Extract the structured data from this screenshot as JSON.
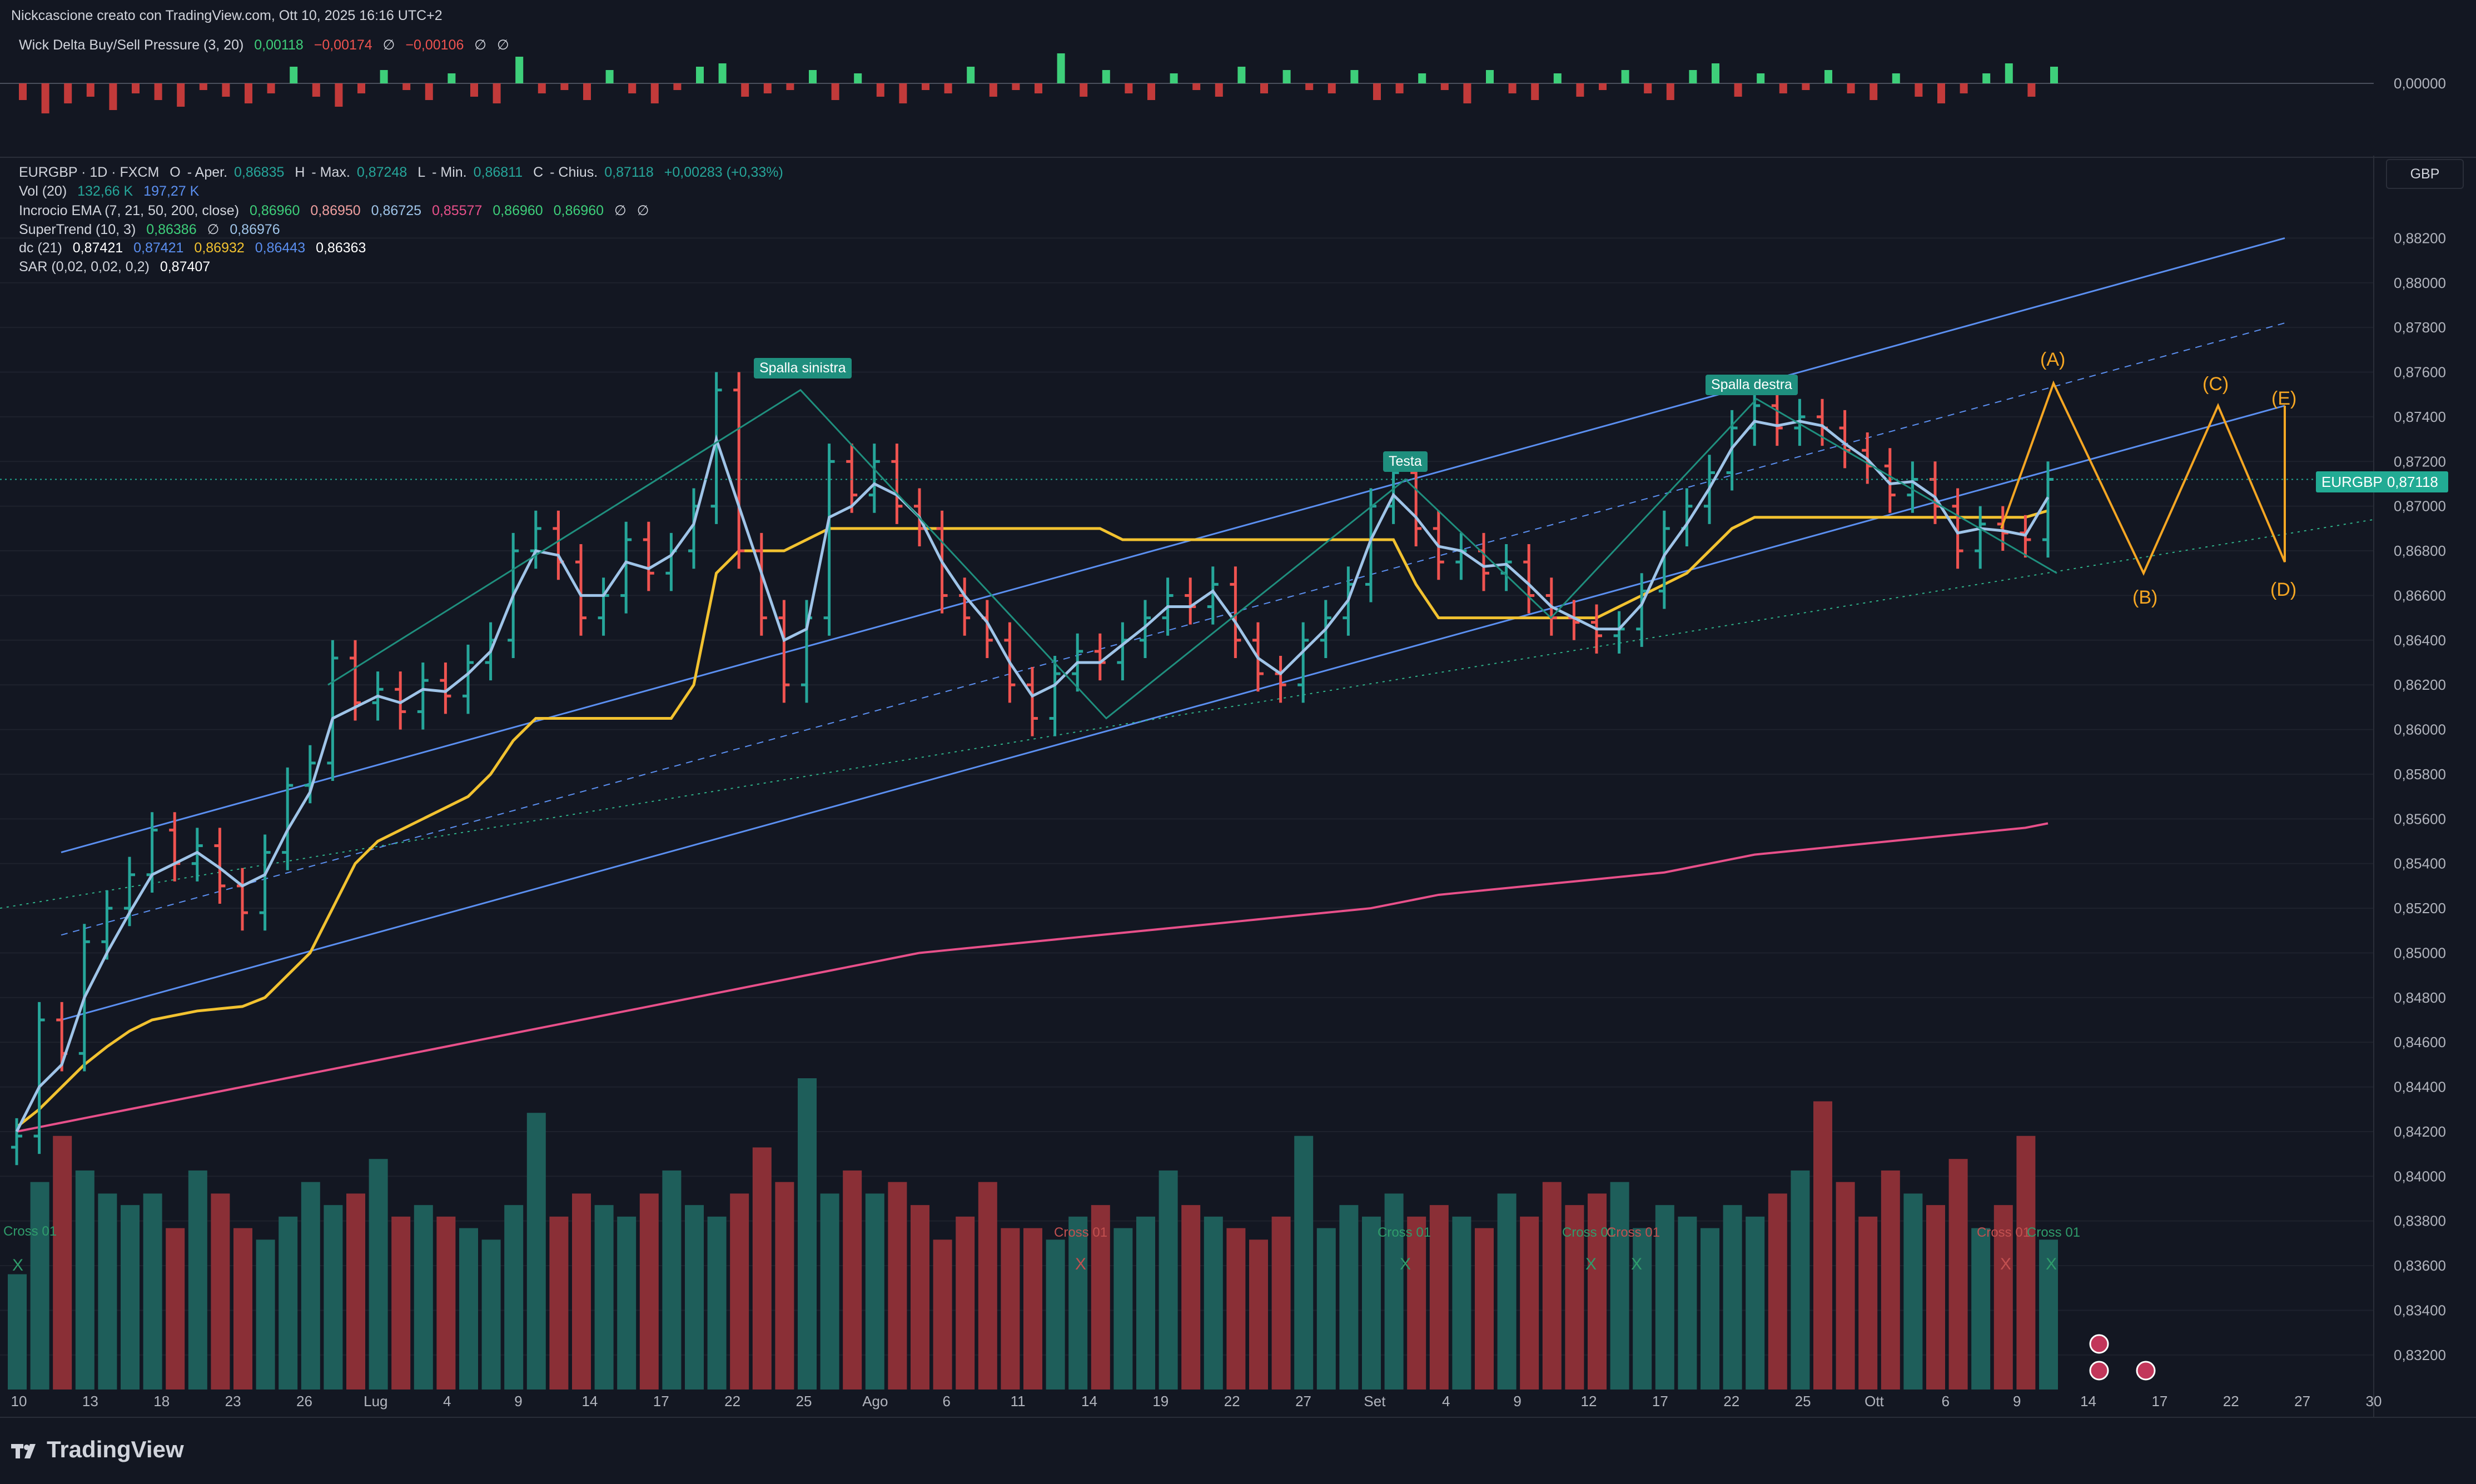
{
  "header": {
    "title": "Nickcascione creato con TradingView.com, Ott 10, 2025 16:16 UTC+2"
  },
  "wick_delta": {
    "name": "Wick Delta Buy/Sell Pressure (3, 20)",
    "values": [
      "0,00118",
      "−0,00174",
      "∅",
      "−0,00106",
      "∅",
      "∅"
    ],
    "zero_label": "0,00000"
  },
  "legend": {
    "symbol": "EURGBP · 1D · FXCM",
    "ohlc": [
      "O",
      "- Aper.",
      "0,86835",
      "H",
      "- Max.",
      "0,87248",
      "L",
      "- Min.",
      "0,86811",
      "C",
      "- Chius.",
      "0,87118",
      "+0,00283 (+0,33%)"
    ],
    "vol": {
      "name": "Vol (20)",
      "values": [
        "132,66 K",
        "197,27 K"
      ]
    },
    "ema": {
      "name": "Incrocio EMA (7, 21, 50, 200, close)",
      "values": [
        "0,86960",
        "0,86950",
        "0,86725",
        "0,85577",
        "0,86960",
        "0,86960",
        "∅",
        "∅"
      ]
    },
    "supertrend": {
      "name": "SuperTrend (10, 3)",
      "values": [
        "0,86386",
        "∅",
        "0,86976"
      ]
    },
    "dc": {
      "name": "dc (21)",
      "values": [
        "0,87421",
        "0,87421",
        "0,86932",
        "0,86443",
        "0,86363"
      ]
    },
    "sar": {
      "name": "SAR (0,02, 0,02, 0,2)",
      "values": [
        "0,87407"
      ]
    }
  },
  "currency": "GBP",
  "price_tag": {
    "symbol": "EURGBP",
    "value": "0,87118"
  },
  "brand": "TradingView",
  "colors": {
    "up": "#26a69a",
    "down": "#ef5350",
    "background": "#131722",
    "ema_fast": "#9fc4e8",
    "ema_mid": "#3ecf7a",
    "ema_200": "#e8508a",
    "supertrend": "#f2c230",
    "channel": "#5b8ff0",
    "wave": "#f5a623"
  },
  "annotations": {
    "left_shoulder": "Spalla sinistra",
    "head": "Testa",
    "right_shoulder": "Spalla destra",
    "waves": [
      "(A)",
      "(B)",
      "(C)",
      "(D)",
      "(E)"
    ],
    "cross_labels": [
      "Cross 01",
      "Cross 01",
      "Cross 01",
      "Cross 01",
      "Cross 01",
      "Cross 01",
      "Cross 01",
      "Cross 01"
    ],
    "cross_marks": [
      "X",
      "X",
      "X",
      "X",
      "X",
      "X",
      "X"
    ]
  },
  "chart_data": {
    "type": "candlestick",
    "symbol": "EURGBP",
    "timeframe": "1D",
    "ylim": [
      0.8312,
      0.8842
    ],
    "y_ticks": [
      "0,88200",
      "0,88000",
      "0,87800",
      "0,87600",
      "0,87400",
      "0,87200",
      "0,87000",
      "0,86800",
      "0,86600",
      "0,86400",
      "0,86200",
      "0,86000",
      "0,85800",
      "0,85600",
      "0,85400",
      "0,85200",
      "0,85000",
      "0,84800",
      "0,84600",
      "0,84400",
      "0,84200",
      "0,84000",
      "0,83800",
      "0,83600",
      "0,83400",
      "0,83200"
    ],
    "x_ticks": [
      "10",
      "13",
      "18",
      "23",
      "26",
      "Lug",
      "4",
      "9",
      "14",
      "17",
      "22",
      "25",
      "Ago",
      "6",
      "11",
      "14",
      "19",
      "22",
      "27",
      "Set",
      "4",
      "9",
      "12",
      "17",
      "22",
      "25",
      "Ott",
      "6",
      "9",
      "14",
      "17",
      "22",
      "27",
      "30"
    ],
    "closes": [
      0.8418,
      0.847,
      0.8455,
      0.8505,
      0.852,
      0.8535,
      0.8555,
      0.854,
      0.8548,
      0.853,
      0.8518,
      0.8545,
      0.8575,
      0.8585,
      0.8632,
      0.8612,
      0.8618,
      0.8608,
      0.8622,
      0.8615,
      0.863,
      0.864,
      0.868,
      0.869,
      0.8675,
      0.865,
      0.866,
      0.8685,
      0.867,
      0.868,
      0.87,
      0.8752,
      0.868,
      0.865,
      0.862,
      0.865,
      0.872,
      0.8705,
      0.872,
      0.87,
      0.869,
      0.866,
      0.865,
      0.864,
      0.862,
      0.8605,
      0.8625,
      0.8635,
      0.863,
      0.864,
      0.865,
      0.866,
      0.8655,
      0.8665,
      0.864,
      0.8625,
      0.862,
      0.864,
      0.865,
      0.8665,
      0.87,
      0.8715,
      0.869,
      0.8675,
      0.868,
      0.867,
      0.8675,
      0.866,
      0.865,
      0.8648,
      0.8642,
      0.8645,
      0.8662,
      0.869,
      0.87,
      0.8715,
      0.8735,
      0.8745,
      0.8735,
      0.874,
      0.8735,
      0.8725,
      0.8718,
      0.8705,
      0.8712,
      0.87,
      0.868,
      0.8692,
      0.8688,
      0.8685,
      0.8712
    ],
    "volumes": [
      1.0,
      1.8,
      2.2,
      1.9,
      1.7,
      1.6,
      1.7,
      1.4,
      1.9,
      1.7,
      1.4,
      1.3,
      1.5,
      1.8,
      1.6,
      1.7,
      2.0,
      1.5,
      1.6,
      1.5,
      1.4,
      1.3,
      1.6,
      2.4,
      1.5,
      1.7,
      1.6,
      1.5,
      1.7,
      1.9,
      1.6,
      1.5,
      1.7,
      2.1,
      1.8,
      2.7,
      1.7,
      1.9,
      1.7,
      1.8,
      1.6,
      1.3,
      1.5,
      1.8,
      1.4,
      1.4,
      1.3,
      1.5,
      1.6,
      1.4,
      1.5,
      1.9,
      1.6,
      1.5,
      1.4,
      1.3,
      1.5,
      2.2,
      1.4,
      1.6,
      1.5,
      1.7,
      1.5,
      1.6,
      1.5,
      1.4,
      1.7,
      1.5,
      1.8,
      1.6,
      1.7,
      1.8,
      1.4,
      1.6,
      1.5,
      1.4,
      1.6,
      1.5,
      1.7,
      1.9,
      2.5,
      1.8,
      1.5,
      1.9,
      1.7,
      1.6,
      2.0,
      1.4,
      1.6,
      2.2,
      1.3
    ],
    "ema7": [
      0.842,
      0.844,
      0.845,
      0.848,
      0.85,
      0.8518,
      0.8535,
      0.854,
      0.8545,
      0.8538,
      0.853,
      0.8535,
      0.8555,
      0.8572,
      0.8605,
      0.861,
      0.8615,
      0.8612,
      0.8618,
      0.8617,
      0.8625,
      0.8635,
      0.866,
      0.868,
      0.8678,
      0.866,
      0.866,
      0.8675,
      0.8672,
      0.8678,
      0.8692,
      0.873,
      0.87,
      0.867,
      0.864,
      0.8645,
      0.8695,
      0.87,
      0.871,
      0.8705,
      0.8695,
      0.8675,
      0.866,
      0.8648,
      0.863,
      0.8615,
      0.862,
      0.863,
      0.863,
      0.8638,
      0.8646,
      0.8655,
      0.8655,
      0.8662,
      0.8648,
      0.8632,
      0.8625,
      0.8635,
      0.8645,
      0.8658,
      0.8685,
      0.8705,
      0.8695,
      0.8682,
      0.868,
      0.8673,
      0.8674,
      0.8665,
      0.8655,
      0.865,
      0.8645,
      0.8645,
      0.8656,
      0.8678,
      0.8692,
      0.8708,
      0.8726,
      0.8738,
      0.8736,
      0.8738,
      0.8736,
      0.8728,
      0.8721,
      0.871,
      0.8711,
      0.8704,
      0.8688,
      0.869,
      0.8689,
      0.8687,
      0.8704
    ],
    "ema200": [
      0.842,
      0.8422,
      0.8424,
      0.8426,
      0.8428,
      0.843,
      0.8432,
      0.8434,
      0.8436,
      0.8438,
      0.844,
      0.8442,
      0.8444,
      0.8446,
      0.8448,
      0.845,
      0.8452,
      0.8454,
      0.8456,
      0.8458,
      0.846,
      0.8462,
      0.8464,
      0.8466,
      0.8468,
      0.847,
      0.8472,
      0.8474,
      0.8476,
      0.8478,
      0.848,
      0.8482,
      0.8484,
      0.8486,
      0.8488,
      0.849,
      0.8492,
      0.8494,
      0.8496,
      0.8498,
      0.85,
      0.8501,
      0.8502,
      0.8503,
      0.8504,
      0.8505,
      0.8506,
      0.8507,
      0.8508,
      0.8509,
      0.851,
      0.8511,
      0.8512,
      0.8513,
      0.8514,
      0.8515,
      0.8516,
      0.8517,
      0.8518,
      0.8519,
      0.852,
      0.8522,
      0.8524,
      0.8526,
      0.8527,
      0.8528,
      0.8529,
      0.853,
      0.8531,
      0.8532,
      0.8533,
      0.8534,
      0.8535,
      0.8536,
      0.8538,
      0.854,
      0.8542,
      0.8544,
      0.8545,
      0.8546,
      0.8547,
      0.8548,
      0.8549,
      0.855,
      0.8551,
      0.8552,
      0.8553,
      0.8554,
      0.8555,
      0.8556,
      0.8558
    ],
    "supertrend_line": [
      0.8422,
      0.843,
      0.844,
      0.845,
      0.8458,
      0.8465,
      0.847,
      0.8472,
      0.8474,
      0.8475,
      0.8476,
      0.848,
      0.849,
      0.85,
      0.852,
      0.854,
      0.855,
      0.8555,
      0.856,
      0.8565,
      0.857,
      0.858,
      0.8595,
      0.8605,
      0.8605,
      0.8605,
      0.8605,
      0.8605,
      0.8605,
      0.8605,
      0.862,
      0.867,
      0.868,
      0.868,
      0.868,
      0.8685,
      0.869,
      0.869,
      0.869,
      0.869,
      0.869,
      0.869,
      0.869,
      0.869,
      0.869,
      0.869,
      0.869,
      0.869,
      0.869,
      0.8685,
      0.8685,
      0.8685,
      0.8685,
      0.8685,
      0.8685,
      0.8685,
      0.8685,
      0.8685,
      0.8685,
      0.8685,
      0.8685,
      0.8685,
      0.8665,
      0.865,
      0.865,
      0.865,
      0.865,
      0.865,
      0.865,
      0.865,
      0.865,
      0.8655,
      0.866,
      0.8665,
      0.867,
      0.868,
      0.869,
      0.8695,
      0.8695,
      0.8695,
      0.8695,
      0.8695,
      0.8695,
      0.8695,
      0.8695,
      0.8695,
      0.8695,
      0.8695,
      0.8695,
      0.8695,
      0.8698
    ],
    "wick_delta_values": [
      -0.5,
      -0.9,
      -0.6,
      -0.4,
      -0.8,
      -0.3,
      -0.5,
      -0.7,
      -0.2,
      -0.4,
      -0.6,
      -0.3,
      0.5,
      -0.4,
      -0.7,
      -0.3,
      0.4,
      -0.2,
      -0.5,
      0.3,
      -0.4,
      -0.6,
      0.8,
      -0.3,
      -0.2,
      -0.5,
      0.4,
      -0.3,
      -0.6,
      -0.2,
      0.5,
      0.6,
      -0.4,
      -0.3,
      -0.2,
      0.4,
      -0.5,
      0.3,
      -0.4,
      -0.6,
      -0.2,
      -0.3,
      0.5,
      -0.4,
      -0.2,
      -0.3,
      0.9,
      -0.4,
      0.4,
      -0.3,
      -0.5,
      0.3,
      -0.2,
      -0.4,
      0.5,
      -0.3,
      0.4,
      -0.2,
      -0.3,
      0.4,
      -0.5,
      -0.3,
      0.3,
      -0.2,
      -0.6,
      0.4,
      -0.3,
      -0.5,
      0.3,
      -0.4,
      -0.2,
      0.4,
      -0.3,
      -0.5,
      0.4,
      0.6,
      -0.4,
      0.3,
      -0.3,
      -0.2,
      0.4,
      -0.3,
      -0.5,
      0.3,
      -0.4,
      -0.6,
      -0.3,
      0.3,
      0.6,
      -0.4,
      0.5
    ]
  }
}
